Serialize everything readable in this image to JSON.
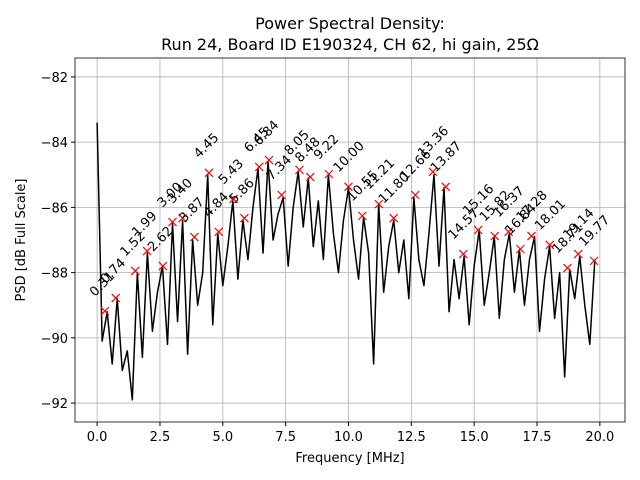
{
  "chart_data": {
    "type": "line",
    "title": [
      "Power Spectral Density:",
      "Run 24, Board ID E190324, CH 62, hi gain, 25Ω"
    ],
    "xlabel": "Frequency [MHz]",
    "ylabel": "PSD [dB Full Scale]",
    "xlim": [
      -0.88,
      21.0
    ],
    "ylim": [
      -92.58,
      -81.42
    ],
    "xticks": [
      {
        "value": 0,
        "label": "0.0"
      },
      2.5,
      {
        "value": 5,
        "label": "5.0"
      },
      7.5,
      {
        "value": 10,
        "label": "10.0"
      },
      12.5,
      {
        "value": 15,
        "label": "15.0"
      },
      17.5,
      {
        "value": 20,
        "label": "20.0"
      }
    ],
    "yticks": [
      {
        "value": -92,
        "label": "−92"
      },
      {
        "value": -90,
        "label": "−90"
      },
      {
        "value": -88,
        "label": "−88"
      },
      {
        "value": -86,
        "label": "−86"
      },
      {
        "value": -84,
        "label": "−84"
      },
      {
        "value": -82,
        "label": "−82"
      }
    ],
    "grid": true,
    "series": [
      {
        "color": "#000000",
        "x": [
          0,
          0.2,
          0.4,
          0.6,
          0.8,
          1,
          1.2,
          1.4,
          1.6,
          1.8,
          2,
          2.2,
          2.4,
          2.6,
          2.8,
          3,
          3.2,
          3.4,
          3.6,
          3.8,
          4,
          4.2,
          4.4,
          4.6,
          4.8,
          5,
          5.2,
          5.4,
          5.6,
          5.8,
          6,
          6.2,
          6.4,
          6.6,
          6.8,
          7,
          7.2,
          7.4,
          7.6,
          7.8,
          8,
          8.2,
          8.4,
          8.6,
          8.8,
          9,
          9.2,
          9.4,
          9.6,
          9.8,
          10,
          10.2,
          10.4,
          10.6,
          10.8,
          11,
          11.2,
          11.4,
          11.6,
          11.8,
          12,
          12.2,
          12.4,
          12.6,
          12.8,
          13,
          13.2,
          13.4,
          13.6,
          13.8,
          14,
          14.2,
          14.4,
          14.6,
          14.8,
          15,
          15.2,
          15.4,
          15.6,
          15.8,
          16,
          16.2,
          16.4,
          16.6,
          16.8,
          17,
          17.2,
          17.4,
          17.6,
          17.8,
          18,
          18.2,
          18.4,
          18.6,
          18.8,
          19,
          19.2,
          19.4,
          19.6,
          19.8
        ],
        "values": [
          -83.4,
          -90.1,
          -89.2,
          -90.8,
          -88.8,
          -91.0,
          -90.4,
          -91.9,
          -88.0,
          -90.6,
          -87.4,
          -89.8,
          -88.6,
          -87.8,
          -90.2,
          -86.5,
          -89.5,
          -86.4,
          -90.5,
          -87.0,
          -89.0,
          -88.0,
          -85.0,
          -89.6,
          -86.8,
          -88.4,
          -87.2,
          -85.8,
          -88.2,
          -86.4,
          -87.6,
          -86.0,
          -84.8,
          -87.4,
          -84.6,
          -87.0,
          -86.2,
          -85.7,
          -87.8,
          -86.0,
          -84.9,
          -86.6,
          -85.1,
          -87.2,
          -85.8,
          -87.6,
          -85.0,
          -86.8,
          -88.0,
          -86.4,
          -85.4,
          -87.0,
          -88.2,
          -86.3,
          -87.4,
          -90.8,
          -85.9,
          -88.6,
          -87.2,
          -86.4,
          -88.0,
          -87.0,
          -88.8,
          -85.7,
          -87.6,
          -88.4,
          -86.8,
          -85.0,
          -87.8,
          -85.4,
          -89.2,
          -87.6,
          -88.8,
          -87.5,
          -89.6,
          -87.8,
          -86.7,
          -89.0,
          -88.0,
          -86.9,
          -89.4,
          -87.6,
          -86.8,
          -88.6,
          -87.3,
          -89.0,
          -87.6,
          -86.9,
          -89.8,
          -88.2,
          -87.2,
          -89.4,
          -88.0,
          -91.2,
          -87.9,
          -88.8,
          -87.5,
          -89.0,
          -90.2,
          -87.6
        ]
      },
      {
        "color": "#ff0000",
        "marker": "x",
        "x": [
          0.31,
          0.74,
          1.52,
          1.99,
          2.62,
          3.0,
          3.4,
          3.87,
          4.45,
          4.84,
          5.43,
          5.86,
          6.45,
          6.84,
          7.34,
          8.05,
          8.48,
          9.22,
          10.0,
          10.55,
          11.21,
          11.8,
          12.66,
          13.36,
          13.87,
          14.57,
          15.16,
          15.82,
          16.37,
          16.84,
          17.28,
          18.01,
          18.71,
          19.14,
          19.77
        ],
        "labels": [
          "0.31",
          "0.74",
          "1.52",
          "1.99",
          "2.62",
          "3.00",
          "3.40",
          "3.87",
          "4.45",
          "4.84",
          "5.43",
          "5.86",
          "6.45",
          "6.84",
          "7.34",
          "8.05",
          "8.48",
          "9.22",
          "10.00",
          "10.55",
          "11.21",
          "11.80",
          "12.66",
          "13.36",
          "13.87",
          "14.57",
          "15.16",
          "15.82",
          "16.37",
          "16.84",
          "17.28",
          "18.01",
          "18.71",
          "19.14",
          "19.77"
        ],
        "values": [
          -89.18,
          -88.78,
          -87.95,
          -87.34,
          -87.8,
          -86.45,
          -86.33,
          -86.91,
          -84.94,
          -86.75,
          -85.74,
          -86.33,
          -84.76,
          -84.55,
          -85.62,
          -84.85,
          -85.07,
          -84.98,
          -85.37,
          -86.26,
          -85.9,
          -86.33,
          -85.62,
          -84.91,
          -85.37,
          -87.43,
          -86.69,
          -86.88,
          -86.75,
          -87.28,
          -86.88,
          -87.15,
          -87.86,
          -87.43,
          -87.64
        ]
      }
    ]
  }
}
